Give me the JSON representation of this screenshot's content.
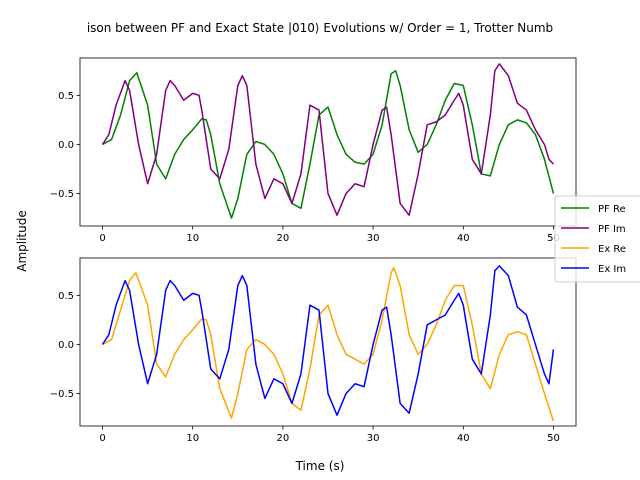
{
  "chart_data": {
    "type": "line",
    "title": "ison between PF and Exact State |010⟩ Evolutions w/ Order = 1, Trotter Numb",
    "ylabel": "Amplitude",
    "xlabel": "Time (s)",
    "legend": {
      "placement": "right",
      "entries": [
        "PF Re",
        "PF Im",
        "Ex Re",
        "Ex Im"
      ]
    },
    "xlim": [
      -2.5,
      52.5
    ],
    "xticks": [
      0,
      10,
      20,
      30,
      40,
      50
    ],
    "subplots": [
      {
        "ylim": [
          -0.83,
          0.88
        ],
        "yticks": [
          -0.5,
          0.0,
          0.5
        ],
        "series": [
          {
            "name": "PF Re",
            "color": "#008000",
            "x": [
              0,
              1,
              2,
              3,
              3.8,
              5,
              6,
              7,
              8,
              9,
              10,
              11,
              11.5,
              12,
              13,
              14.3,
              15,
              16,
              17,
              18,
              19,
              20,
              21,
              22,
              23,
              24,
              25,
              26,
              27,
              28,
              29,
              30,
              31,
              32,
              32.5,
              33,
              34,
              35,
              36,
              37,
              38,
              39,
              40,
              41,
              42,
              43,
              44,
              45,
              46,
              47,
              48,
              49,
              50
            ],
            "y": [
              0,
              0.05,
              0.3,
              0.65,
              0.73,
              0.4,
              -0.2,
              -0.35,
              -0.1,
              0.05,
              0.15,
              0.26,
              0.25,
              0.1,
              -0.4,
              -0.75,
              -0.55,
              -0.1,
              0.03,
              0.0,
              -0.1,
              -0.3,
              -0.6,
              -0.65,
              -0.2,
              0.3,
              0.38,
              0.1,
              -0.1,
              -0.18,
              -0.2,
              -0.1,
              0.2,
              0.72,
              0.75,
              0.6,
              0.15,
              -0.08,
              0.0,
              0.2,
              0.45,
              0.62,
              0.6,
              0.2,
              -0.3,
              -0.32,
              0.0,
              0.2,
              0.25,
              0.22,
              0.1,
              -0.15,
              -0.5
            ]
          },
          {
            "name": "PF Im",
            "color": "#800080",
            "x": [
              0,
              0.7,
              1.5,
              2.5,
              3,
              4,
              5,
              6,
              7,
              7.5,
              8,
              9,
              10,
              10.7,
              11,
              12,
              13,
              14,
              15,
              15.5,
              16,
              17,
              18,
              19,
              20,
              21,
              22,
              23,
              24,
              25,
              26,
              27,
              28,
              29,
              30,
              31,
              31.5,
              32,
              33,
              34,
              35,
              36,
              37,
              38,
              39,
              39.5,
              40,
              41,
              42,
              43,
              43.5,
              44,
              45,
              46,
              47,
              48,
              49,
              49.5,
              50
            ],
            "y": [
              0,
              0.1,
              0.4,
              0.65,
              0.55,
              0.0,
              -0.4,
              -0.1,
              0.55,
              0.65,
              0.6,
              0.45,
              0.52,
              0.5,
              0.35,
              -0.25,
              -0.35,
              -0.05,
              0.6,
              0.7,
              0.6,
              -0.2,
              -0.55,
              -0.35,
              -0.4,
              -0.6,
              -0.3,
              0.4,
              0.35,
              -0.5,
              -0.72,
              -0.5,
              -0.4,
              -0.43,
              0.0,
              0.35,
              0.38,
              0.1,
              -0.6,
              -0.72,
              -0.3,
              0.2,
              0.23,
              0.3,
              0.45,
              0.52,
              0.4,
              -0.15,
              -0.3,
              0.3,
              0.75,
              0.82,
              0.7,
              0.42,
              0.35,
              0.15,
              0.0,
              -0.15,
              -0.2
            ]
          }
        ]
      },
      {
        "ylim": [
          -0.83,
          0.88
        ],
        "yticks": [
          -0.5,
          0.0,
          0.5
        ],
        "series": [
          {
            "name": "Ex Re",
            "color": "#FFA500",
            "x": [
              0,
              1,
              2,
              3,
              3.7,
              5,
              6,
              7,
              8,
              9,
              10,
              11,
              11.5,
              12,
              13,
              14.3,
              15,
              16,
              17,
              18,
              19,
              20,
              21,
              22,
              23,
              24,
              25,
              26,
              27,
              28,
              29,
              30,
              31,
              32,
              32.3,
              33,
              34,
              35,
              36,
              37,
              38,
              39,
              40,
              41,
              42,
              43,
              44,
              45,
              46,
              47,
              48,
              49,
              50
            ],
            "y": [
              0,
              0.05,
              0.35,
              0.65,
              0.73,
              0.4,
              -0.2,
              -0.33,
              -0.1,
              0.05,
              0.15,
              0.26,
              0.25,
              0.1,
              -0.45,
              -0.75,
              -0.5,
              -0.05,
              0.05,
              0.0,
              -0.1,
              -0.3,
              -0.6,
              -0.67,
              -0.25,
              0.3,
              0.4,
              0.1,
              -0.1,
              -0.15,
              -0.2,
              -0.1,
              0.25,
              0.73,
              0.78,
              0.6,
              0.1,
              -0.1,
              0.0,
              0.2,
              0.45,
              0.6,
              0.6,
              0.2,
              -0.3,
              -0.45,
              -0.1,
              0.1,
              0.13,
              0.1,
              -0.2,
              -0.5,
              -0.78
            ]
          },
          {
            "name": "Ex Im",
            "color": "#0000FF",
            "x": [
              0,
              0.7,
              1.5,
              2.5,
              3,
              4,
              5,
              6,
              7,
              7.5,
              8,
              9,
              10,
              10.7,
              11,
              12,
              13,
              14,
              15,
              15.5,
              16,
              17,
              18,
              19,
              20,
              21,
              22,
              23,
              24,
              25,
              26,
              27,
              28,
              29,
              30,
              31,
              31.5,
              32,
              33,
              34,
              35,
              36,
              37,
              38,
              39,
              39.5,
              40,
              41,
              42,
              43,
              43.5,
              44,
              45,
              46,
              47,
              48,
              49,
              49.5,
              50
            ],
            "y": [
              0,
              0.1,
              0.4,
              0.65,
              0.55,
              0.0,
              -0.4,
              -0.1,
              0.55,
              0.65,
              0.6,
              0.45,
              0.52,
              0.5,
              0.35,
              -0.25,
              -0.35,
              -0.05,
              0.6,
              0.7,
              0.6,
              -0.2,
              -0.55,
              -0.35,
              -0.4,
              -0.6,
              -0.3,
              0.4,
              0.35,
              -0.5,
              -0.72,
              -0.5,
              -0.4,
              -0.43,
              0.0,
              0.35,
              0.38,
              0.1,
              -0.6,
              -0.7,
              -0.3,
              0.2,
              0.25,
              0.3,
              0.45,
              0.52,
              0.4,
              -0.15,
              -0.3,
              0.3,
              0.75,
              0.8,
              0.7,
              0.38,
              0.3,
              0.0,
              -0.3,
              -0.4,
              -0.05
            ]
          }
        ]
      }
    ]
  }
}
